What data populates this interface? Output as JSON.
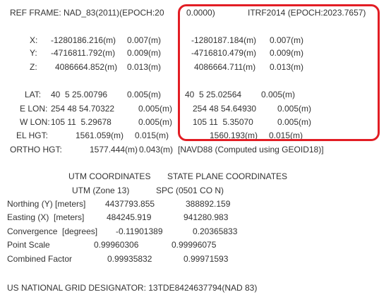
{
  "header": {
    "ref_frame_nad": "REF FRAME: NAD_83(2011)(EPOCH:20",
    "ref_frame_epoch_tail": "0.0000)",
    "itrf": "ITRF2014 (EPOCH:2023.7657)"
  },
  "xyz": [
    {
      "label": "X:",
      "nad_value": "-1280186.216(m)",
      "nad_sigma": "0.007(m)",
      "itrf_value": "-1280187.184(m)",
      "itrf_sigma": "0.007(m)"
    },
    {
      "label": "Y:",
      "nad_value": "-4716811.792(m)",
      "nad_sigma": "0.009(m)",
      "itrf_value": "-4716810.479(m)",
      "itrf_sigma": "0.009(m)"
    },
    {
      "label": "Z:",
      "nad_value": "4086664.852(m)",
      "nad_sigma": "0.013(m)",
      "itrf_value": "4086664.711(m)",
      "itrf_sigma": "0.013(m)"
    }
  ],
  "geo": [
    {
      "label": "LAT:",
      "nad_value": "40  5 25.00796",
      "nad_sigma": "0.005(m)",
      "itrf_value": "40  5 25.02564",
      "itrf_sigma": "0.005(m)"
    },
    {
      "label": "E LON:",
      "nad_value": "254 48 54.70322",
      "nad_sigma": "0.005(m)",
      "itrf_value": "254 48 54.64930",
      "itrf_sigma": "0.005(m)"
    },
    {
      "label": "W LON:",
      "nad_value": "105 11  5.29678",
      "nad_sigma": "0.005(m)",
      "itrf_value": "105 11  5.35070",
      "itrf_sigma": "0.005(m)"
    },
    {
      "label": "EL HGT:",
      "nad_value": "1561.059(m)",
      "nad_sigma": "0.015(m)",
      "itrf_value": "1560.193(m)",
      "itrf_sigma": "0.015(m)"
    }
  ],
  "ortho": {
    "label": "ORTHO HGT:",
    "value": "1577.444(m)",
    "sigma": "0.043(m)",
    "note": "[NAVD88 (Computed using GEOID18)]"
  },
  "coords": {
    "utm_heading": "UTM COORDINATES",
    "spc_heading": "STATE PLANE COORDINATES",
    "utm_zone": "UTM (Zone 13)",
    "spc_zone": "SPC (0501 CO N)",
    "rows": [
      {
        "label": "Northing (Y) [meters]",
        "utm": "4437793.855",
        "spc": "388892.159"
      },
      {
        "label": "Easting (X)  [meters]",
        "utm": "484245.919",
        "spc": "941280.983"
      },
      {
        "label": "Convergence  [degrees]",
        "utm": "-0.11901389",
        "spc": "0.20365833"
      },
      {
        "label": "Point Scale",
        "utm": "0.99960306",
        "spc": "0.99996075"
      },
      {
        "label": "Combined Factor",
        "utm": "0.99935832",
        "spc": "0.99971593"
      }
    ]
  },
  "usng": "US NATIONAL GRID DESIGNATOR: 13TDE8424637794(NAD 83)",
  "colors": {
    "highlight_border": "#e21d24",
    "text": "#333333"
  }
}
